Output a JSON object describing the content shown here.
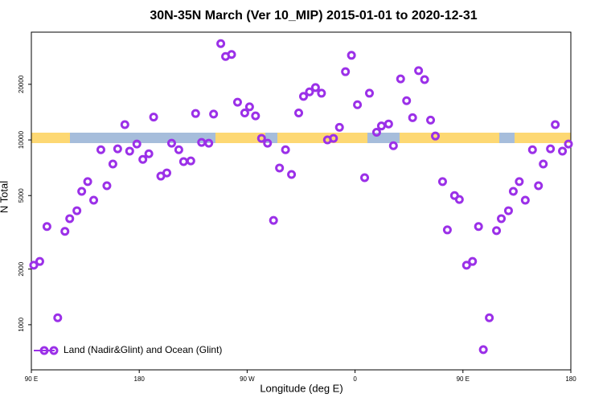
{
  "chart_data": {
    "type": "scatter",
    "title": "30N-35N March (Ver 10_MIP)   2015-01-01 to 2020-12-31",
    "x_label": "Longitude (deg E)",
    "y_label": "N Total",
    "log_y": true,
    "legend_position": "lower left",
    "xlim": [
      90,
      540
    ],
    "xticks": [
      {
        "value": 90,
        "label": "90 E"
      },
      {
        "value": 180,
        "label": "180"
      },
      {
        "value": 270,
        "label": "90 W"
      },
      {
        "value": 360,
        "label": "0"
      },
      {
        "value": 450,
        "label": "90 E"
      },
      {
        "value": 540,
        "label": "180"
      }
    ],
    "ylim": [
      570,
      38300
    ],
    "yticks": [
      1000,
      2000,
      5000,
      10000,
      20000
    ],
    "series": [
      {
        "name": "Land (Nadir&Glint) and Ocean (Glint)",
        "color": "#9b30e8",
        "x": [
          92,
          97,
          103,
          112,
          118,
          122,
          128,
          132,
          137,
          142,
          148,
          153,
          158,
          162,
          168,
          172,
          178,
          183,
          188,
          192,
          198,
          203,
          207,
          213,
          217,
          223,
          227,
          232,
          238,
          242,
          248,
          252,
          257,
          262,
          268,
          272,
          277,
          282,
          287,
          292,
          297,
          302,
          307,
          313,
          317,
          322,
          327,
          332,
          337,
          342,
          347,
          352,
          357,
          362,
          368,
          372,
          378,
          382,
          388,
          392,
          398,
          403,
          408,
          413,
          418,
          423,
          427,
          433,
          437,
          443,
          447,
          453,
          458,
          463,
          467,
          472,
          478,
          482,
          488,
          492,
          497,
          502,
          508,
          513,
          517,
          523,
          527,
          533,
          538
        ],
        "values": [
          2100,
          2200,
          3400,
          1090,
          3200,
          3750,
          4140,
          5270,
          5950,
          4720,
          8850,
          5650,
          7410,
          8950,
          12100,
          8700,
          9500,
          7850,
          8420,
          13300,
          6370,
          6630,
          9600,
          8850,
          7630,
          7700,
          13900,
          9700,
          9600,
          13800,
          33200,
          28300,
          29000,
          16000,
          14000,
          15100,
          13500,
          10200,
          9600,
          3670,
          7050,
          8850,
          6500,
          14000,
          17200,
          18200,
          19200,
          17900,
          10000,
          10200,
          11700,
          23400,
          28700,
          15500,
          6250,
          17900,
          11000,
          11900,
          12200,
          9300,
          21400,
          16300,
          13200,
          23700,
          21200,
          12800,
          10500,
          5950,
          3260,
          5000,
          4760,
          2100,
          2200,
          3400,
          733,
          1090,
          3230,
          3750,
          4140,
          5270,
          5950,
          4720,
          8850,
          5650,
          7410,
          8950,
          12100,
          8700,
          9500
        ]
      }
    ]
  }
}
